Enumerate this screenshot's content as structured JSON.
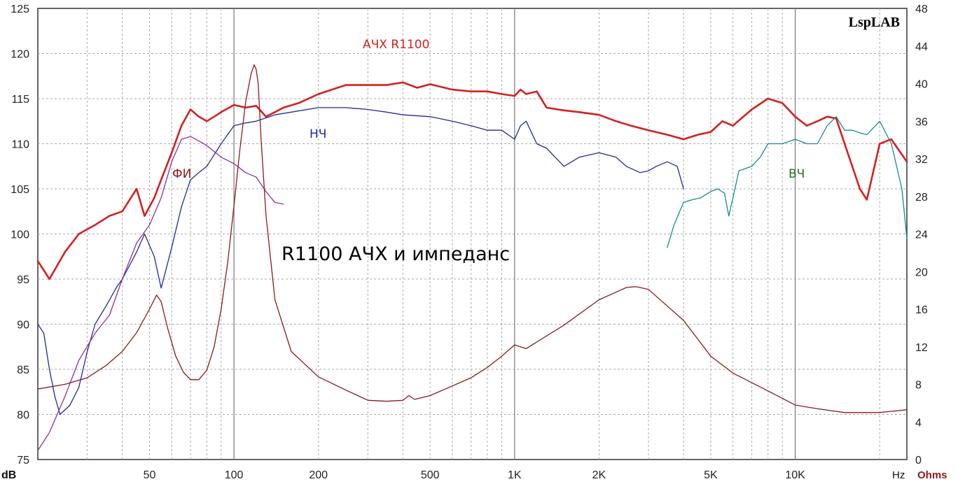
{
  "chart_data": {
    "type": "line",
    "title": "R1100 АЧХ и импеданс",
    "brand": "LspLAB",
    "xlabel": "Hz",
    "ylabel_left": "dB",
    "ylabel_right": "Ohms",
    "x_scale": "log",
    "xlim": [
      20,
      25000
    ],
    "ylim_left": [
      75,
      125
    ],
    "ylim_right": [
      0,
      48
    ],
    "grid": true,
    "x_ticks": [
      {
        "value": 50,
        "label": "50"
      },
      {
        "value": 100,
        "label": "100"
      },
      {
        "value": 200,
        "label": "200"
      },
      {
        "value": 500,
        "label": "500"
      },
      {
        "value": 1000,
        "label": "1K"
      },
      {
        "value": 2000,
        "label": "2K"
      },
      {
        "value": 5000,
        "label": "5K"
      },
      {
        "value": 10000,
        "label": "10K"
      }
    ],
    "y_left_ticks": [
      75,
      80,
      85,
      90,
      95,
      100,
      105,
      110,
      115,
      120,
      125
    ],
    "y_right_ticks": [
      0,
      4,
      8,
      12,
      16,
      20,
      24,
      28,
      32,
      36,
      40,
      44,
      48
    ],
    "colors": {
      "afr": "#d42020",
      "woofer": "#1f2a9e",
      "port": "#8a2fa0",
      "tweeter": "#1a8a8a",
      "impedance": "#8b1a1a"
    },
    "series": [
      {
        "name": "АЧХ R1100",
        "axis": "left",
        "label_color": "#d42020",
        "x": [
          20,
          22,
          25,
          28,
          32,
          36,
          40,
          45,
          48,
          52,
          55,
          60,
          65,
          70,
          75,
          80,
          85,
          90,
          100,
          110,
          120,
          130,
          140,
          150,
          170,
          200,
          250,
          300,
          350,
          400,
          450,
          500,
          600,
          700,
          800,
          900,
          1000,
          1050,
          1100,
          1200,
          1300,
          1500,
          1700,
          2000,
          2300,
          2600,
          3000,
          3500,
          4000,
          4500,
          5000,
          5500,
          6000,
          7000,
          8000,
          9000,
          10000,
          11000,
          12000,
          13000,
          14000,
          15000,
          17000,
          18000,
          20000,
          22000,
          25000
        ],
        "values": [
          97,
          95,
          98,
          100,
          101,
          102,
          102.5,
          105,
          102,
          104,
          106,
          109,
          112,
          113.8,
          113,
          112.5,
          113,
          113.5,
          114.3,
          114,
          114.2,
          113,
          113.5,
          114,
          114.5,
          115.5,
          116.5,
          116.5,
          116.5,
          116.8,
          116.2,
          116.6,
          116,
          115.8,
          115.8,
          115.5,
          115.3,
          116,
          115.5,
          115.8,
          114,
          113.7,
          113.5,
          113.2,
          112.5,
          112,
          111.5,
          111,
          110.5,
          111,
          111.3,
          112.5,
          112,
          113.8,
          115,
          114.5,
          113,
          112,
          112.5,
          113,
          112.8,
          110,
          105,
          103.8,
          110,
          110.5,
          108
        ]
      },
      {
        "name": "НЧ",
        "axis": "left",
        "label_color": "#1f2a9e",
        "x": [
          20,
          21,
          22,
          23,
          24,
          26,
          28,
          30,
          32,
          35,
          38,
          40,
          45,
          48,
          52,
          55,
          60,
          65,
          70,
          75,
          80,
          90,
          100,
          110,
          120,
          140,
          160,
          200,
          250,
          300,
          350,
          400,
          500,
          600,
          700,
          800,
          900,
          1000,
          1050,
          1100,
          1200,
          1300,
          1500,
          1700,
          2000,
          2300,
          2500,
          2800,
          3000,
          3200,
          3500,
          3800,
          4000
        ],
        "values": [
          90,
          89,
          85,
          82,
          80,
          81,
          83,
          87,
          90,
          92,
          94,
          95,
          98,
          100,
          97.5,
          94,
          98.5,
          103,
          106,
          106.8,
          107.5,
          110,
          112,
          112.3,
          112.5,
          113.2,
          113.5,
          114,
          114,
          113.8,
          113.5,
          113.2,
          113,
          112.5,
          112,
          111.5,
          111.5,
          110.5,
          112,
          112.5,
          110,
          109.5,
          107.5,
          108.5,
          109,
          108.5,
          107.5,
          106.8,
          107,
          107.5,
          108,
          107.5,
          105
        ]
      },
      {
        "name": "ФИ",
        "axis": "left",
        "label_color": "#8b1a1a",
        "x": [
          20,
          22,
          25,
          28,
          32,
          36,
          40,
          45,
          50,
          55,
          60,
          65,
          70,
          75,
          80,
          90,
          100,
          110,
          120,
          130,
          140,
          150
        ],
        "values": [
          76,
          78,
          82,
          86,
          89,
          91,
          95,
          99,
          101,
          104,
          108,
          110.5,
          110.8,
          110.3,
          109.8,
          108.5,
          107.8,
          106.8,
          106.3,
          104.7,
          103.5,
          103.3
        ]
      },
      {
        "name": "ВЧ",
        "axis": "left",
        "label_color": "#2e6b2e",
        "x": [
          3500,
          3700,
          4000,
          4300,
          4600,
          5000,
          5300,
          5600,
          5800,
          6000,
          6300,
          7000,
          7500,
          8000,
          9000,
          10000,
          11000,
          12000,
          13000,
          14000,
          15000,
          16000,
          17000,
          18000,
          20000,
          22000,
          24000,
          25000
        ],
        "values": [
          98.5,
          101,
          103.5,
          103.8,
          104,
          104.7,
          105,
          104.5,
          102,
          104,
          107,
          107.5,
          108.5,
          110,
          110,
          110.5,
          110,
          110,
          112,
          113,
          111.5,
          111.5,
          111.2,
          111,
          112.5,
          110,
          105,
          99.5
        ]
      },
      {
        "name": "",
        "axis": "right",
        "label_color": "#8b1a1a",
        "x": [
          20,
          25,
          30,
          35,
          40,
          45,
          50,
          53,
          55,
          58,
          62,
          66,
          70,
          75,
          80,
          85,
          90,
          95,
          100,
          105,
          110,
          115,
          118,
          120,
          122,
          125,
          130,
          140,
          160,
          200,
          250,
          300,
          350,
          400,
          420,
          440,
          500,
          700,
          800,
          900,
          1000,
          1100,
          1200,
          1500,
          2000,
          2500,
          2700,
          3000,
          4000,
          5000,
          6000,
          8000,
          10000,
          12000,
          15000,
          20000,
          25000
        ],
        "values": [
          7.5,
          8,
          8.7,
          10,
          11.5,
          13.5,
          16,
          17.5,
          16.8,
          14,
          11,
          9.3,
          8.5,
          8.5,
          9.5,
          12,
          16,
          21,
          27,
          33,
          38,
          41,
          42,
          41.5,
          40,
          34,
          26,
          17,
          11.5,
          8.8,
          7.4,
          6.3,
          6.2,
          6.3,
          6.8,
          6.4,
          6.8,
          8.7,
          9.8,
          11,
          12.2,
          11.8,
          12.5,
          14.3,
          17,
          18.3,
          18.4,
          18.1,
          14.8,
          11,
          9.2,
          7.3,
          5.8,
          5.4,
          5,
          5,
          5.3
        ]
      }
    ]
  }
}
